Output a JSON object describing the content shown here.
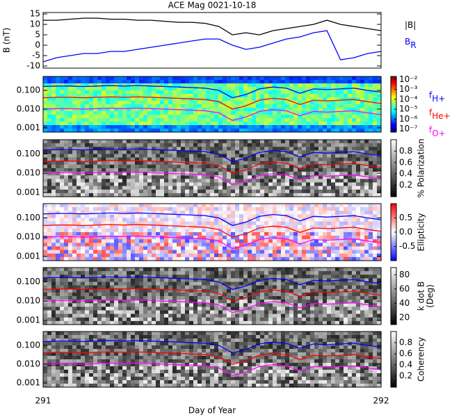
{
  "title": "ACE Mag 0021-10-18",
  "xaxis": {
    "label": "Day of Year",
    "xlim": [
      291,
      292
    ],
    "xticks": [
      291,
      292
    ]
  },
  "chart_data": [
    {
      "type": "line",
      "ylabel": "B (nT)",
      "x": [
        291.0,
        291.04,
        291.08,
        291.12,
        291.16,
        291.2,
        291.24,
        291.28,
        291.32,
        291.36,
        291.4,
        291.44,
        291.48,
        291.52,
        291.56,
        291.6,
        291.64,
        291.68,
        291.72,
        291.76,
        291.8,
        291.84,
        291.88,
        291.92,
        291.96,
        292.0
      ],
      "ylim": [
        -11,
        15.7
      ],
      "yticks": [
        -10,
        -5,
        0,
        5,
        10,
        15
      ],
      "series": [
        {
          "name": "|B|",
          "color": "#000000",
          "values": [
            12,
            12,
            12.5,
            13,
            13,
            12.5,
            12.5,
            12,
            12,
            11.5,
            11,
            11,
            10.5,
            9,
            5,
            6,
            5,
            7,
            8,
            9,
            10,
            12,
            10,
            9,
            8,
            7
          ]
        },
        {
          "name": "B",
          "subscript": "R",
          "color": "#0000ff",
          "values": [
            -8,
            -6,
            -5,
            -4,
            -4,
            -3,
            -3,
            -2,
            -1,
            0,
            1,
            2,
            3,
            3,
            0,
            -2,
            -1,
            1,
            3,
            4,
            6,
            7,
            -7,
            -6,
            -4,
            -3
          ]
        }
      ]
    },
    {
      "type": "spectrogram",
      "colormap": "jet",
      "log_y": true,
      "ylim": [
        0.0006,
        0.55
      ],
      "yticks": [
        {
          "value": 0.001,
          "label": "0.001"
        },
        {
          "value": 0.01,
          "label": "0.010"
        },
        {
          "value": 0.1,
          "label": "0.100"
        }
      ],
      "clim": [
        -7.3,
        -1.7
      ],
      "cticks": [
        {
          "value": -2,
          "label": "10⁻²"
        },
        {
          "value": -3,
          "label": "10⁻³"
        },
        {
          "value": -4,
          "label": "10⁻⁴"
        },
        {
          "value": -5,
          "label": "10⁻⁵"
        },
        {
          "value": -6,
          "label": "10⁻⁶"
        },
        {
          "value": -7,
          "label": "10⁻⁷"
        }
      ],
      "series": [
        {
          "name": "f",
          "subscript": "H+",
          "color": "#0000ff",
          "values": [
            0.16,
            0.17,
            0.17,
            0.16,
            0.17,
            0.18,
            0.17,
            0.18,
            0.17,
            0.16,
            0.15,
            0.14,
            0.13,
            0.1,
            0.04,
            0.06,
            0.12,
            0.15,
            0.13,
            0.07,
            0.12,
            0.11,
            0.12,
            0.13,
            0.1,
            0.08
          ]
        },
        {
          "name": "f",
          "subscript": "He+",
          "color": "#ff0000",
          "values": [
            0.04,
            0.0425,
            0.0425,
            0.04,
            0.0425,
            0.045,
            0.0425,
            0.045,
            0.0425,
            0.04,
            0.0375,
            0.035,
            0.0325,
            0.025,
            0.01,
            0.015,
            0.03,
            0.0375,
            0.0325,
            0.0175,
            0.03,
            0.0275,
            0.03,
            0.0325,
            0.025,
            0.02
          ]
        },
        {
          "name": "f",
          "subscript": "O+",
          "color": "#ff00ff",
          "values": [
            0.01,
            0.0106,
            0.0106,
            0.01,
            0.0106,
            0.0113,
            0.0106,
            0.0113,
            0.0106,
            0.01,
            0.0094,
            0.0088,
            0.0081,
            0.0063,
            0.0025,
            0.0038,
            0.0075,
            0.0094,
            0.0081,
            0.0044,
            0.0075,
            0.0069,
            0.0075,
            0.0081,
            0.0063,
            0.005
          ]
        }
      ]
    },
    {
      "type": "spectrogram",
      "colormap": "gray",
      "log_y": true,
      "ylim": [
        0.0006,
        0.55
      ],
      "yticks": [
        {
          "value": 0.001,
          "label": "0.001"
        },
        {
          "value": 0.01,
          "label": "0.010"
        },
        {
          "value": 0.1,
          "label": "0.100"
        }
      ],
      "clim": [
        0,
        1
      ],
      "cticks": [
        0.2,
        0.4,
        0.6,
        0.8
      ],
      "clabel": [
        "% Polarization"
      ]
    },
    {
      "type": "spectrogram",
      "colormap": "bwr",
      "log_y": true,
      "ylim": [
        0.0006,
        0.55
      ],
      "yticks": [
        {
          "value": 0.001,
          "label": "0.001"
        },
        {
          "value": 0.01,
          "label": "0.010"
        },
        {
          "value": 0.1,
          "label": "0.100"
        }
      ],
      "clim": [
        -1,
        1
      ],
      "cticks": [
        -0.5,
        {
          "value": 0,
          "label": "0.0"
        },
        0.5
      ],
      "clabel": [
        "Ellipticity"
      ]
    },
    {
      "type": "spectrogram",
      "colormap": "gray",
      "log_y": true,
      "ylim": [
        0.0006,
        0.55
      ],
      "yticks": [
        {
          "value": 0.001,
          "label": "0.001"
        },
        {
          "value": 0.01,
          "label": "0.010"
        },
        {
          "value": 0.1,
          "label": "0.100"
        }
      ],
      "clim": [
        10,
        90
      ],
      "cticks": [
        20,
        40,
        60,
        80
      ],
      "clabel": [
        "k dot B",
        "(Deg)"
      ]
    },
    {
      "type": "spectrogram",
      "colormap": "gray",
      "log_y": true,
      "ylim": [
        0.0006,
        0.55
      ],
      "yticks": [
        {
          "value": 0.001,
          "label": "0.001"
        },
        {
          "value": 0.01,
          "label": "0.010"
        },
        {
          "value": 0.1,
          "label": "0.100"
        }
      ],
      "clim": [
        0,
        1
      ],
      "cticks": [
        0.2,
        0.4,
        0.6,
        0.8
      ],
      "clabel": [
        "Coherency"
      ]
    }
  ]
}
